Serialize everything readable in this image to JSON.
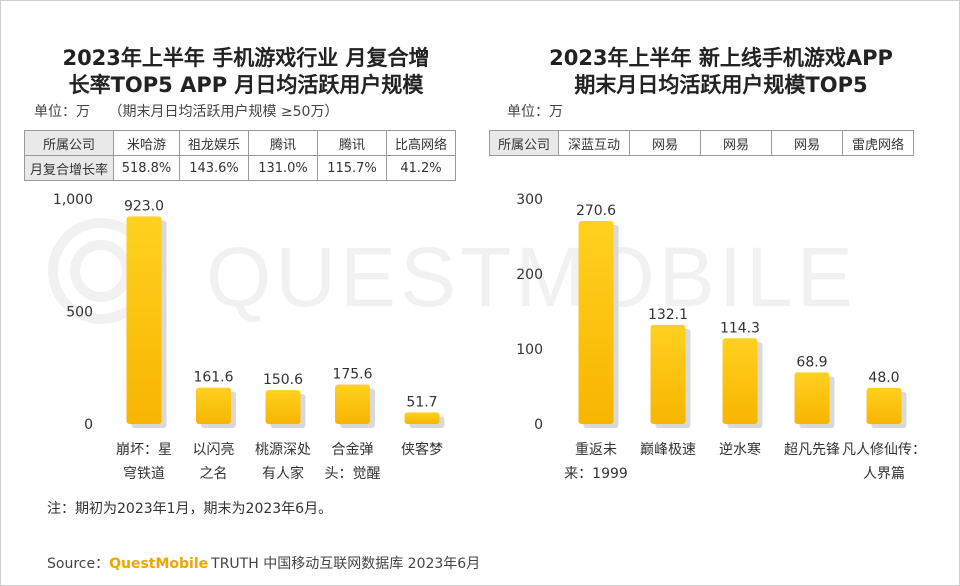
{
  "source": {
    "prefix": "Source：",
    "brand": "QuestMobile",
    "rest": "TRUTH 中国移动互联网数据库 2023年6月"
  },
  "note": "注：期初为2023年1月，期末为2023年6月。",
  "watermark": "QUESTMOBILE",
  "colors": {
    "bar_top": "#ffd11f",
    "bar_bottom": "#f7b500",
    "shadow": "#d9d9d9",
    "brand": "#f0a500"
  },
  "left": {
    "title": [
      "2023年上半年 手机游戏行业 月复合增",
      "长率TOP5 APP 月日均活跃用户规模"
    ],
    "unit": "单位：万",
    "unit_note": "（期末月日均活跃用户规模 ≥50万）",
    "table": {
      "row1_head": "所属公司",
      "row1": [
        "米哈游",
        "祖龙娱乐",
        "腾讯",
        "腾讯",
        "比高网络"
      ],
      "row2_head": "月复合增长率",
      "row2": [
        "518.8%",
        "143.6%",
        "131.0%",
        "115.7%",
        "41.2%"
      ]
    }
  },
  "right": {
    "title": [
      "2023年上半年 新上线手机游戏APP",
      "期末月日均活跃用户规模TOP5"
    ],
    "unit": "单位：万",
    "table": {
      "row1_head": "所属公司",
      "row1": [
        "深蓝互动",
        "网易",
        "网易",
        "网易",
        "雷虎网络"
      ]
    }
  },
  "chart_data": [
    {
      "type": "bar",
      "title": "2023年上半年 手机游戏行业 月复合增长率TOP5 APP 月日均活跃用户规模",
      "ylabel": "单位：万",
      "categories": [
        [
          "崩坏：星",
          "穹铁道"
        ],
        [
          "以闪亮",
          "之名"
        ],
        [
          "桃源深处",
          "有人家"
        ],
        [
          "合金弹",
          "头：觉醒"
        ],
        [
          "侠客梦"
        ]
      ],
      "values": [
        923.0,
        161.6,
        150.6,
        175.6,
        51.7
      ],
      "value_labels": [
        "923.0",
        "161.6",
        "150.6",
        "175.6",
        "51.7"
      ],
      "ylim": [
        0,
        1000
      ],
      "yticks": [
        0,
        500,
        1000
      ],
      "ytick_labels": [
        "0",
        "500",
        "1,000"
      ],
      "grid": false
    },
    {
      "type": "bar",
      "title": "2023年上半年 新上线手机游戏APP期末月日均活跃用户规模TOP5",
      "ylabel": "单位：万",
      "categories": [
        [
          "重返未",
          "来：1999"
        ],
        [
          "巅峰极速"
        ],
        [
          "逆水寒"
        ],
        [
          "超凡先锋"
        ],
        [
          "凡人修仙传：",
          "人界篇"
        ]
      ],
      "values": [
        270.6,
        132.1,
        114.3,
        68.9,
        48.0
      ],
      "value_labels": [
        "270.6",
        "132.1",
        "114.3",
        "68.9",
        "48.0"
      ],
      "ylim": [
        0,
        300
      ],
      "yticks": [
        0,
        100,
        200,
        300
      ],
      "ytick_labels": [
        "0",
        "100",
        "200",
        "300"
      ],
      "grid": false
    }
  ]
}
